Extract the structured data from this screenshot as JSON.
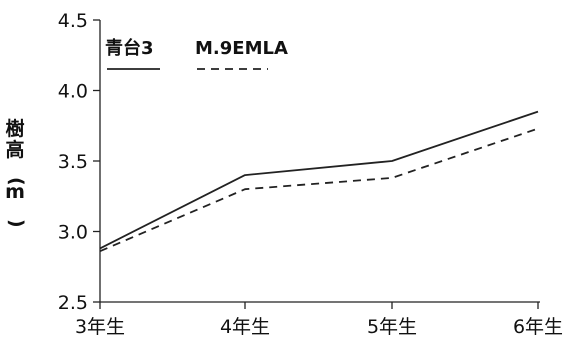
{
  "chart_data": {
    "type": "line",
    "categories": [
      "3年生",
      "4年生",
      "5年生",
      "6年生"
    ],
    "series": [
      {
        "name": "青台3",
        "values": [
          2.88,
          3.4,
          3.5,
          3.85
        ],
        "line_style": "solid",
        "color": "#222222"
      },
      {
        "name": "M.9EMLA",
        "values": [
          2.86,
          3.3,
          3.38,
          3.73
        ],
        "line_style": "dashed",
        "color": "#222222"
      }
    ],
    "ylabel": "樹高(m)",
    "ylim": [
      2.5,
      4.5
    ],
    "yticks": [
      "2.5",
      "3.0",
      "3.5",
      "4.0",
      "4.5"
    ],
    "grid": false,
    "legend_position": "top-left"
  }
}
